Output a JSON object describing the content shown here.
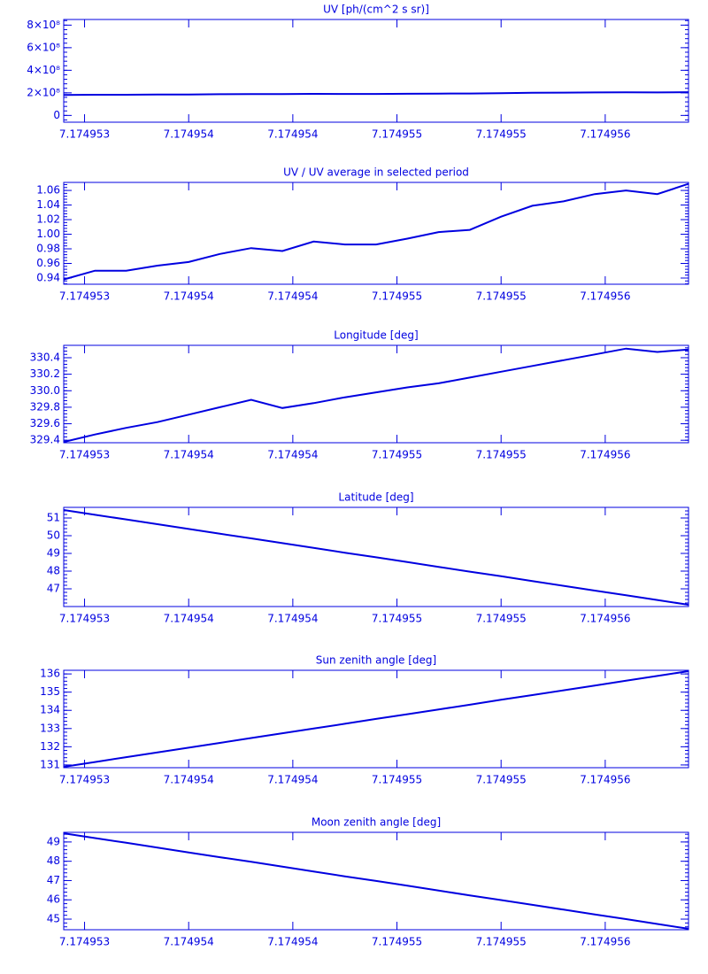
{
  "chart_data": [
    {
      "type": "line",
      "title": "UV [ph/(cm^2 s sr)]",
      "color": "#0000e0",
      "x": [
        7.1749529,
        7.17495305,
        7.1749532,
        7.17495335,
        7.1749535,
        7.17495365,
        7.1749538,
        7.17495395,
        7.1749541,
        7.17495425,
        7.1749544,
        7.17495455,
        7.1749547,
        7.17495485,
        7.174955,
        7.17495515,
        7.1749553,
        7.17495545,
        7.1749556,
        7.17495575,
        7.1749559
      ],
      "values": [
        181000000,
        183400000,
        183400000,
        184700000,
        185700000,
        187800000,
        189300000,
        188600000,
        191100000,
        190300000,
        190300000,
        191800000,
        193600000,
        194200000,
        197600000,
        200500000,
        201700000,
        203600000,
        204600000,
        203600000,
        206300000
      ],
      "xlim": [
        7.1749529,
        7.1749559
      ],
      "xticks": [
        {
          "value": 7.174953,
          "label": "7.174953"
        },
        {
          "value": 7.1749535,
          "label": "7.174954"
        },
        {
          "value": 7.174954,
          "label": "7.174954"
        },
        {
          "value": 7.1749545,
          "label": "7.174955"
        },
        {
          "value": 7.174955,
          "label": "7.174955"
        },
        {
          "value": 7.1749555,
          "label": "7.174956"
        }
      ],
      "ylim": [
        -60000000,
        850000000
      ],
      "yticks": [
        0,
        {
          "value": 200000000,
          "label": "2×10⁸"
        },
        {
          "value": 400000000,
          "label": "4×10⁸"
        },
        {
          "value": 600000000,
          "label": "6×10⁸"
        },
        {
          "value": 800000000,
          "label": "8×10⁸"
        }
      ]
    },
    {
      "type": "line",
      "title": "UV / UV average in selected period",
      "color": "#0000e0",
      "x": [
        7.1749529,
        7.17495305,
        7.1749532,
        7.17495335,
        7.1749535,
        7.17495365,
        7.1749538,
        7.17495395,
        7.1749541,
        7.17495425,
        7.1749544,
        7.17495455,
        7.1749547,
        7.17495485,
        7.174955,
        7.17495515,
        7.1749553,
        7.17495545,
        7.1749556,
        7.17495575,
        7.1749559
      ],
      "values": [
        0.938,
        0.95,
        0.95,
        0.957,
        0.962,
        0.973,
        0.981,
        0.977,
        0.99,
        0.986,
        0.986,
        0.994,
        1.003,
        1.006,
        1.024,
        1.039,
        1.045,
        1.055,
        1.06,
        1.055,
        1.069
      ],
      "xlim": [
        7.1749529,
        7.1749559
      ],
      "xticks": [
        {
          "value": 7.174953,
          "label": "7.174953"
        },
        {
          "value": 7.1749535,
          "label": "7.174954"
        },
        {
          "value": 7.174954,
          "label": "7.174954"
        },
        {
          "value": 7.1749545,
          "label": "7.174955"
        },
        {
          "value": 7.174955,
          "label": "7.174955"
        },
        {
          "value": 7.1749555,
          "label": "7.174956"
        }
      ],
      "ylim": [
        0.9315,
        1.071
      ],
      "yticks": [
        0.94,
        0.96,
        0.98,
        {
          "value": 1,
          "label": "1.00"
        },
        1.02,
        1.04,
        1.06
      ]
    },
    {
      "type": "line",
      "title": "Longitude [deg]",
      "color": "#0000e0",
      "x": [
        7.1749529,
        7.17495305,
        7.1749532,
        7.17495335,
        7.1749535,
        7.17495365,
        7.1749538,
        7.17495395,
        7.1749541,
        7.17495425,
        7.1749544,
        7.17495455,
        7.1749547,
        7.17495485,
        7.174955,
        7.17495515,
        7.1749553,
        7.17495545,
        7.1749556,
        7.17495575,
        7.1749559
      ],
      "values": [
        329.38,
        329.47,
        329.55,
        329.62,
        329.71,
        329.8,
        329.89,
        329.79,
        329.85,
        329.92,
        329.98,
        330.04,
        330.09,
        330.16,
        330.23,
        330.3,
        330.37,
        330.44,
        330.51,
        330.47,
        330.5
      ],
      "xlim": [
        7.1749529,
        7.1749559
      ],
      "xticks": [
        {
          "value": 7.174953,
          "label": "7.174953"
        },
        {
          "value": 7.1749535,
          "label": "7.174954"
        },
        {
          "value": 7.174954,
          "label": "7.174954"
        },
        {
          "value": 7.1749545,
          "label": "7.174955"
        },
        {
          "value": 7.174955,
          "label": "7.174955"
        },
        {
          "value": 7.1749555,
          "label": "7.174956"
        }
      ],
      "ylim": [
        329.37,
        330.55
      ],
      "yticks": [
        329.4,
        329.6,
        329.8,
        {
          "value": 330,
          "label": "330.0"
        },
        330.2,
        330.4
      ]
    },
    {
      "type": "line",
      "title": "Latitude [deg]",
      "color": "#0000e0",
      "x": [
        7.1749529,
        7.17495305,
        7.1749532,
        7.17495335,
        7.1749535,
        7.17495365,
        7.1749538,
        7.17495395,
        7.1749541,
        7.17495425,
        7.1749544,
        7.17495455,
        7.1749547,
        7.17495485,
        7.174955,
        7.17495515,
        7.1749553,
        7.17495545,
        7.1749556,
        7.17495575,
        7.1749559
      ],
      "values": [
        51.45,
        51.18,
        50.92,
        50.65,
        50.38,
        50.11,
        49.85,
        49.58,
        49.31,
        49.04,
        48.78,
        48.51,
        48.24,
        47.97,
        47.71,
        47.44,
        47.17,
        46.9,
        46.64,
        46.37,
        46.1
      ],
      "xlim": [
        7.1749529,
        7.1749559
      ],
      "xticks": [
        {
          "value": 7.174953,
          "label": "7.174953"
        },
        {
          "value": 7.1749535,
          "label": "7.174954"
        },
        {
          "value": 7.174954,
          "label": "7.174954"
        },
        {
          "value": 7.1749545,
          "label": "7.174955"
        },
        {
          "value": 7.174955,
          "label": "7.174955"
        },
        {
          "value": 7.1749555,
          "label": "7.174956"
        }
      ],
      "ylim": [
        46.0,
        51.6
      ],
      "yticks": [
        47,
        48,
        49,
        50,
        51
      ]
    },
    {
      "type": "line",
      "title": "Sun zenith angle [deg]",
      "color": "#0000e0",
      "x": [
        7.1749529,
        7.17495305,
        7.1749532,
        7.17495335,
        7.1749535,
        7.17495365,
        7.1749538,
        7.17495395,
        7.1749541,
        7.17495425,
        7.1749544,
        7.17495455,
        7.1749547,
        7.17495485,
        7.174955,
        7.17495515,
        7.1749553,
        7.17495545,
        7.1749556,
        7.17495575,
        7.1749559
      ],
      "values": [
        130.9,
        131.16,
        131.43,
        131.69,
        131.95,
        132.21,
        132.48,
        132.74,
        133.0,
        133.26,
        133.53,
        133.79,
        134.05,
        134.31,
        134.58,
        134.84,
        135.1,
        135.36,
        135.63,
        135.89,
        136.15
      ],
      "xlim": [
        7.1749529,
        7.1749559
      ],
      "xticks": [
        {
          "value": 7.174953,
          "label": "7.174953"
        },
        {
          "value": 7.1749535,
          "label": "7.174954"
        },
        {
          "value": 7.174954,
          "label": "7.174954"
        },
        {
          "value": 7.1749545,
          "label": "7.174955"
        },
        {
          "value": 7.174955,
          "label": "7.174955"
        },
        {
          "value": 7.1749555,
          "label": "7.174956"
        }
      ],
      "ylim": [
        130.85,
        136.2
      ],
      "yticks": [
        131,
        132,
        133,
        134,
        135,
        136
      ]
    },
    {
      "type": "line",
      "title": "Moon zenith angle [deg]",
      "color": "#0000e0",
      "x": [
        7.1749529,
        7.17495305,
        7.1749532,
        7.17495335,
        7.1749535,
        7.17495365,
        7.1749538,
        7.17495395,
        7.1749541,
        7.17495425,
        7.1749544,
        7.17495455,
        7.1749547,
        7.17495485,
        7.174955,
        7.17495515,
        7.1749553,
        7.17495545,
        7.1749556,
        7.17495575,
        7.1749559
      ],
      "values": [
        49.45,
        49.2,
        48.96,
        48.71,
        48.46,
        48.21,
        47.97,
        47.72,
        47.47,
        47.22,
        46.98,
        46.73,
        46.48,
        46.23,
        45.99,
        45.74,
        45.49,
        45.24,
        45.0,
        44.75,
        44.5
      ],
      "xlim": [
        7.1749529,
        7.1749559
      ],
      "xticks": [
        {
          "value": 7.174953,
          "label": "7.174953"
        },
        {
          "value": 7.1749535,
          "label": "7.174954"
        },
        {
          "value": 7.174954,
          "label": "7.174954"
        },
        {
          "value": 7.1749545,
          "label": "7.174955"
        },
        {
          "value": 7.174955,
          "label": "7.174955"
        },
        {
          "value": 7.1749555,
          "label": "7.174956"
        }
      ],
      "ylim": [
        44.45,
        49.5
      ],
      "yticks": [
        45,
        46,
        47,
        48,
        49
      ]
    }
  ]
}
